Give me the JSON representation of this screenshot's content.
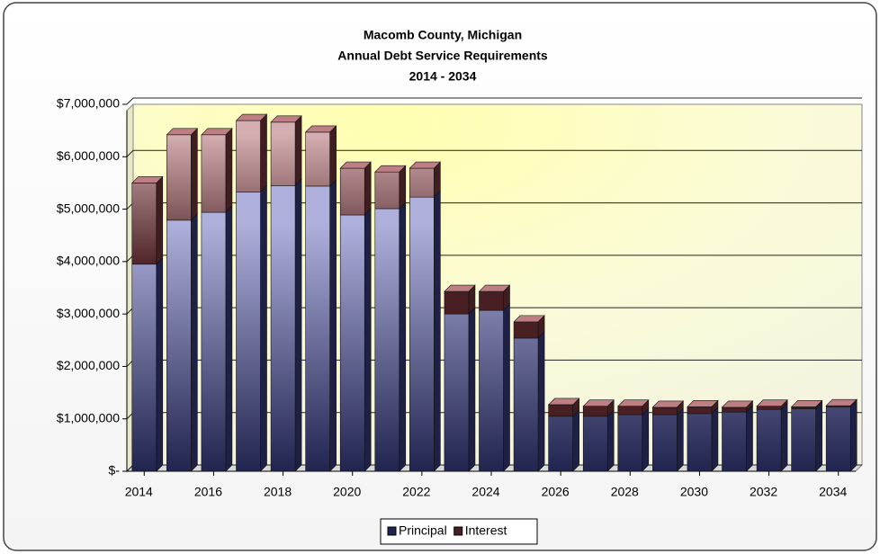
{
  "chart_data": {
    "type": "stacked_bar",
    "title": [
      "Macomb County, Michigan",
      "Annual Debt Service Requirements",
      "2014 - 2034"
    ],
    "categories": [
      "2014",
      null,
      "2016",
      null,
      "2018",
      null,
      "2020",
      null,
      "2022",
      null,
      "2024",
      null,
      "2026",
      null,
      "2028",
      null,
      "2030",
      null,
      "2032",
      null,
      "2034"
    ],
    "series": [
      {
        "name": "Principal",
        "color": "#4a4fb0",
        "values": [
          3950000,
          4790000,
          4940000,
          5330000,
          5450000,
          5440000,
          4890000,
          5010000,
          5230000,
          3000000,
          3070000,
          2540000,
          1050000,
          1050000,
          1080000,
          1080000,
          1100000,
          1130000,
          1180000,
          1190000,
          1230000
        ]
      },
      {
        "name": "Interest",
        "color": "#a0484f",
        "values": [
          1550000,
          1630000,
          1480000,
          1360000,
          1210000,
          1030000,
          890000,
          700000,
          550000,
          430000,
          360000,
          310000,
          220000,
          190000,
          160000,
          140000,
          130000,
          90000,
          60000,
          40000,
          20000
        ]
      }
    ],
    "ylim": [
      0,
      7000000
    ],
    "yticks": [
      {
        "value": 0,
        "label": "$-"
      },
      {
        "value": 1000000,
        "label": "$1,000,000"
      },
      {
        "value": 2000000,
        "label": "$2,000,000"
      },
      {
        "value": 3000000,
        "label": "$3,000,000"
      },
      {
        "value": 4000000,
        "label": "$4,000,000"
      },
      {
        "value": 5000000,
        "label": "$5,000,000"
      },
      {
        "value": 6000000,
        "label": "$6,000,000"
      },
      {
        "value": 7000000,
        "label": "$7,000,000"
      }
    ],
    "grid": true,
    "legend": "bottom"
  }
}
